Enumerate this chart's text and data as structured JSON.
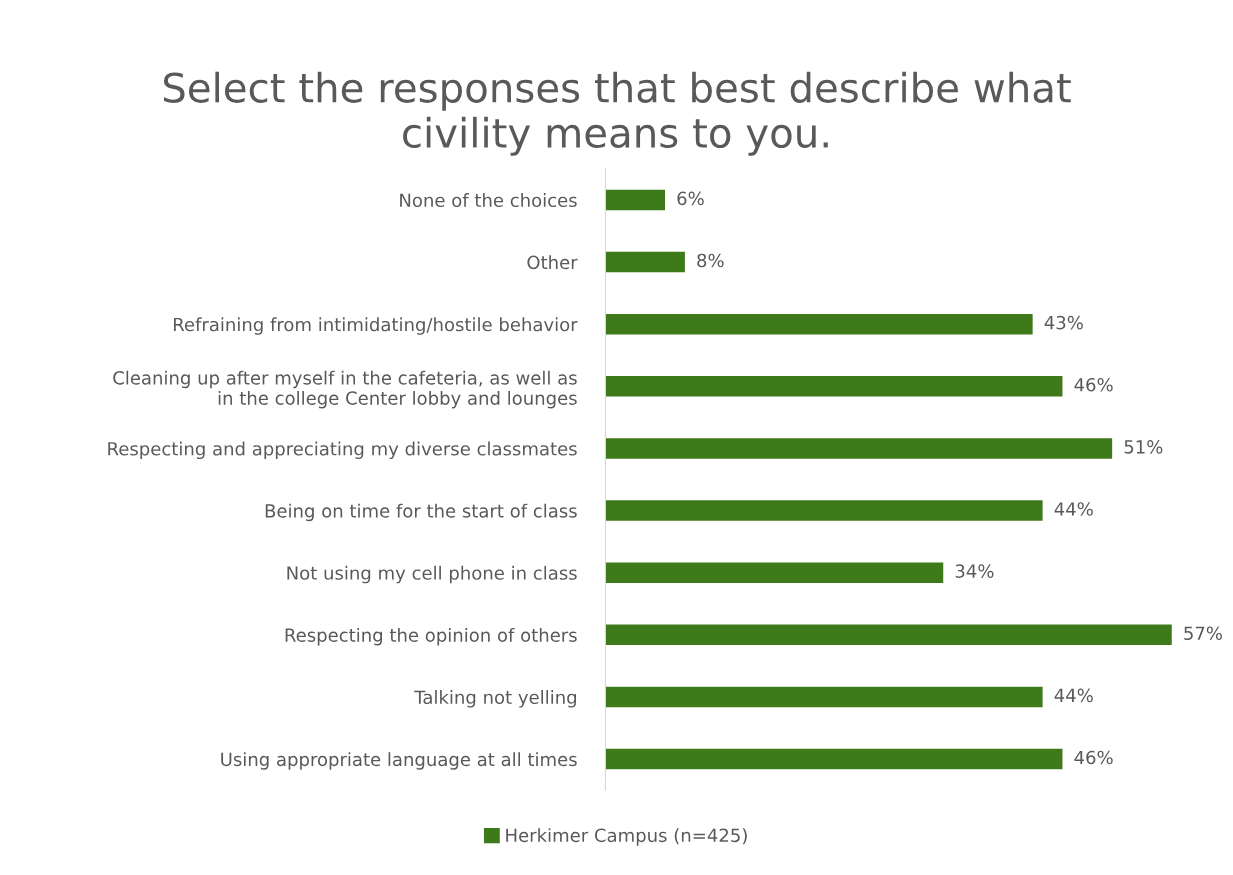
{
  "chart_data": {
    "type": "bar",
    "orientation": "horizontal",
    "title": "Select the responses that best describe what\ncivility means to you.",
    "categories": [
      "None of the choices",
      "Other",
      "Refraining from intimidating/hostile behavior",
      "Cleaning up after myself in the cafeteria, as well as\nin the college Center lobby and lounges",
      "Respecting and appreciating my diverse classmates",
      "Being on time for the start of class",
      "Not using my cell phone in class",
      "Respecting the opinion of others",
      "Talking not yelling",
      "Using appropriate language at all times"
    ],
    "series": [
      {
        "name": "Herkimer Campus (n=425)",
        "color": "#3f7a1a",
        "values": [
          6,
          8,
          43,
          46,
          51,
          44,
          34,
          57,
          44,
          46
        ],
        "value_labels": [
          "6%",
          "8%",
          "43%",
          "46%",
          "51%",
          "44%",
          "34%",
          "57%",
          "44%",
          "46%"
        ]
      }
    ],
    "tick_labels": "y",
    "legend": "bottom"
  }
}
